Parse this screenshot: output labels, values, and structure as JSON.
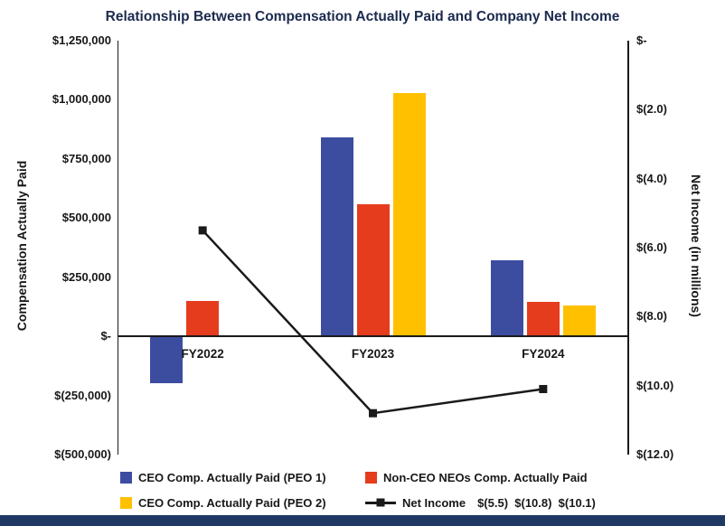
{
  "title": "Relationship Between Compensation Actually Paid and Company Net Income",
  "chart_data": {
    "type": "bar+line combo",
    "title": "Relationship Between Compensation Actually Paid and Company Net Income",
    "categories": [
      "FY2022",
      "FY2023",
      "FY2024"
    ],
    "grid": false,
    "legend_position": "bottom",
    "left_axis": {
      "title": "Compensation Actually Paid",
      "min": -500000,
      "max": 1250000,
      "ticks": [
        {
          "value": 1250000,
          "label": "$1,250,000"
        },
        {
          "value": 1000000,
          "label": "$1,000,000"
        },
        {
          "value": 750000,
          "label": "$750,000"
        },
        {
          "value": 500000,
          "label": "$500,000"
        },
        {
          "value": 250000,
          "label": "$250,000"
        },
        {
          "value": 0,
          "label": "$-"
        },
        {
          "value": -250000,
          "label": "$(250,000)"
        },
        {
          "value": -500000,
          "label": "$(500,000)"
        }
      ]
    },
    "right_axis": {
      "title": "Net Income (in millions)",
      "min": -12,
      "max": 0,
      "ticks": [
        {
          "value": 0,
          "label": "$-"
        },
        {
          "value": -2,
          "label": "$(2.0)"
        },
        {
          "value": -4,
          "label": "$(4.0)"
        },
        {
          "value": -6,
          "label": "$(6.0)"
        },
        {
          "value": -8,
          "label": "$(8.0)"
        },
        {
          "value": -10,
          "label": "$(10.0)"
        },
        {
          "value": -12,
          "label": "$(12.0)"
        }
      ]
    },
    "series": [
      {
        "key": "ceo-peo1",
        "name": "CEO Comp. Actually Paid (PEO 1)",
        "type": "bar",
        "axis": "left",
        "color": "#3C4DA0",
        "values": [
          -200000,
          840000,
          320000
        ]
      },
      {
        "key": "non-ceo-neos",
        "name": "Non-CEO NEOs Comp. Actually Paid",
        "type": "bar",
        "axis": "left",
        "color": "#E63C1E",
        "values": [
          150000,
          560000,
          145000
        ]
      },
      {
        "key": "ceo-peo2",
        "name": "CEO Comp. Actually Paid (PEO 2)",
        "type": "bar",
        "axis": "left",
        "color": "#FFC000",
        "values": [
          null,
          1030000,
          130000
        ]
      },
      {
        "key": "net-income",
        "name": "Net Income",
        "type": "line",
        "axis": "right",
        "color": "#1A1A1A",
        "values": [
          -5.5,
          -10.8,
          -10.1
        ]
      }
    ]
  },
  "legend": {
    "items": [
      {
        "label": "CEO Comp. Actually Paid (PEO 1)",
        "color": "#3C4DA0",
        "marker": "square"
      },
      {
        "label": "Non-CEO NEOs Comp. Actually Paid",
        "color": "#E63C1E",
        "marker": "square"
      },
      {
        "label": "CEO Comp. Actually Paid (PEO 2)",
        "color": "#FFC000",
        "marker": "square"
      },
      {
        "label": "Net Income",
        "color": "#1A1A1A",
        "marker": "line-square",
        "values_text": "$(5.5)  $(10.8)  $(10.1)"
      }
    ]
  },
  "colors": {
    "accent_bar": "#1F3864",
    "axis_line": "#1A1A1A",
    "text": "#181818",
    "title_text": "#1B2A4E"
  }
}
